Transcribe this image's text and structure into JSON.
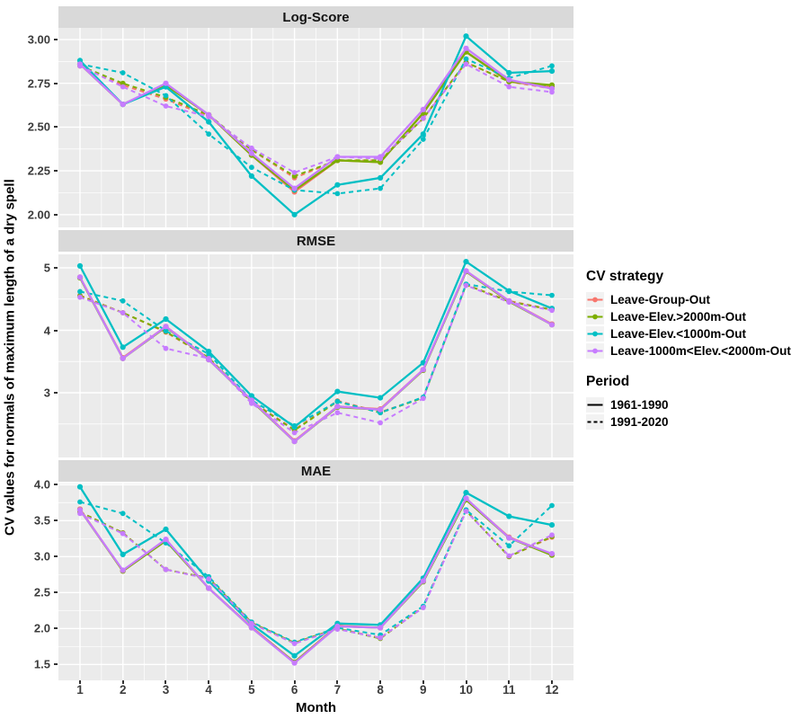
{
  "axes": {
    "ylabel": "CV values for normals of maximum length of a dry spell",
    "xlabel": "Month",
    "x_tick_labels": [
      "1",
      "2",
      "3",
      "4",
      "5",
      "6",
      "7",
      "8",
      "9",
      "10",
      "11",
      "12"
    ]
  },
  "legend": {
    "cv_title": "CV strategy",
    "cv_items": [
      {
        "label": "Leave-Group-Out",
        "color": "#F8766D"
      },
      {
        "label": "Leave-Elev.>2000m-Out",
        "color": "#7CAE00"
      },
      {
        "label": "Leave-Elev.<1000m-Out",
        "color": "#00BFC4"
      },
      {
        "label": "Leave-1000m<Elev.<2000m-Out",
        "color": "#C77CFF"
      }
    ],
    "period_title": "Period",
    "period_items": [
      {
        "label": "1961-1990",
        "dash": ""
      },
      {
        "label": "1991-2020",
        "dash": "4,3"
      }
    ],
    "key_background": "#F2F2F2"
  },
  "style": {
    "panel_background": "#EBEBEB",
    "strip_background": "#D9D9D9",
    "grid_color": "#FFFFFF"
  },
  "chart_data": [
    {
      "type": "line",
      "title": "Log-Score",
      "x": [
        1,
        2,
        3,
        4,
        5,
        6,
        7,
        8,
        9,
        10,
        11,
        12
      ],
      "ylim": [
        1.927,
        3.067
      ],
      "yticks": [
        2.0,
        2.25,
        2.5,
        2.75,
        3.0
      ],
      "ytick_labels": [
        "2.00",
        "2.25",
        "2.50",
        "2.75",
        "3.00"
      ],
      "series": [
        {
          "name": "Leave-Group-Out",
          "period": "1961-1990",
          "color": "#F8766D",
          "dashed": false,
          "values": [
            2.86,
            2.63,
            2.74,
            2.57,
            2.34,
            2.13,
            2.31,
            2.3,
            2.58,
            2.93,
            2.76,
            2.73
          ]
        },
        {
          "name": "Leave-Group-Out",
          "period": "1991-2020",
          "color": "#F8766D",
          "dashed": true,
          "values": [
            2.85,
            2.74,
            2.66,
            2.56,
            2.37,
            2.21,
            2.31,
            2.31,
            2.55,
            2.87,
            2.76,
            2.72
          ]
        },
        {
          "name": "Leave-Elev.>2000m-Out",
          "period": "1961-1990",
          "color": "#7CAE00",
          "dashed": false,
          "values": [
            2.86,
            2.63,
            2.74,
            2.57,
            2.34,
            2.14,
            2.31,
            2.3,
            2.58,
            2.93,
            2.76,
            2.74
          ]
        },
        {
          "name": "Leave-Elev.>2000m-Out",
          "period": "1991-2020",
          "color": "#7CAE00",
          "dashed": true,
          "values": [
            2.85,
            2.75,
            2.67,
            2.57,
            2.37,
            2.22,
            2.31,
            2.31,
            2.55,
            2.87,
            2.76,
            2.73
          ]
        },
        {
          "name": "Leave-Elev.<1000m-Out",
          "period": "1961-1990",
          "color": "#00BFC4",
          "dashed": false,
          "values": [
            2.88,
            2.63,
            2.73,
            2.53,
            2.22,
            2.0,
            2.17,
            2.21,
            2.46,
            3.02,
            2.81,
            2.82
          ]
        },
        {
          "name": "Leave-Elev.<1000m-Out",
          "period": "1991-2020",
          "color": "#00BFC4",
          "dashed": true,
          "values": [
            2.86,
            2.81,
            2.68,
            2.46,
            2.27,
            2.14,
            2.12,
            2.15,
            2.43,
            2.89,
            2.78,
            2.85
          ]
        },
        {
          "name": "Leave-1000m<Elev.<2000m-Out",
          "period": "1961-1990",
          "color": "#C77CFF",
          "dashed": false,
          "values": [
            2.86,
            2.63,
            2.75,
            2.57,
            2.35,
            2.15,
            2.33,
            2.33,
            2.6,
            2.95,
            2.77,
            2.72
          ]
        },
        {
          "name": "Leave-1000m<Elev.<2000m-Out",
          "period": "1991-2020",
          "color": "#C77CFF",
          "dashed": true,
          "values": [
            2.85,
            2.73,
            2.62,
            2.56,
            2.38,
            2.24,
            2.33,
            2.32,
            2.55,
            2.86,
            2.73,
            2.7
          ]
        }
      ]
    },
    {
      "type": "line",
      "title": "RMSE",
      "x": [
        1,
        2,
        3,
        4,
        5,
        6,
        7,
        8,
        9,
        10,
        11,
        12
      ],
      "ylim": [
        1.964,
        5.216
      ],
      "yticks": [
        3,
        4,
        5
      ],
      "ytick_labels": [
        "3",
        "4",
        "5"
      ],
      "series": [
        {
          "name": "Leave-Group-Out",
          "period": "1961-1990",
          "color": "#F8766D",
          "dashed": false,
          "values": [
            4.85,
            3.56,
            4.06,
            3.54,
            2.88,
            2.23,
            2.78,
            2.74,
            3.37,
            4.95,
            4.47,
            4.1
          ]
        },
        {
          "name": "Leave-Group-Out",
          "period": "1991-2020",
          "color": "#F8766D",
          "dashed": true,
          "values": [
            4.56,
            4.28,
            3.97,
            3.56,
            2.86,
            2.41,
            2.87,
            2.69,
            2.92,
            4.73,
            4.47,
            4.33
          ]
        },
        {
          "name": "Leave-Elev.>2000m-Out",
          "period": "1961-1990",
          "color": "#7CAE00",
          "dashed": false,
          "values": [
            4.84,
            3.55,
            4.05,
            3.53,
            2.87,
            2.22,
            2.77,
            2.73,
            3.36,
            4.94,
            4.46,
            4.09
          ]
        },
        {
          "name": "Leave-Elev.>2000m-Out",
          "period": "1991-2020",
          "color": "#7CAE00",
          "dashed": true,
          "values": [
            4.55,
            4.28,
            3.98,
            3.56,
            2.85,
            2.4,
            2.86,
            2.68,
            2.92,
            4.73,
            4.46,
            4.33
          ]
        },
        {
          "name": "Leave-Elev.<1000m-Out",
          "period": "1961-1990",
          "color": "#00BFC4",
          "dashed": false,
          "values": [
            5.03,
            3.73,
            4.18,
            3.66,
            2.95,
            2.45,
            3.02,
            2.92,
            3.48,
            5.1,
            4.63,
            4.35
          ]
        },
        {
          "name": "Leave-Elev.<1000m-Out",
          "period": "1991-2020",
          "color": "#00BFC4",
          "dashed": true,
          "values": [
            4.62,
            4.47,
            3.99,
            3.62,
            2.88,
            2.47,
            2.86,
            2.68,
            2.93,
            4.74,
            4.62,
            4.56
          ]
        },
        {
          "name": "Leave-1000m<Elev.<2000m-Out",
          "period": "1961-1990",
          "color": "#C77CFF",
          "dashed": false,
          "values": [
            4.85,
            3.55,
            4.06,
            3.53,
            2.88,
            2.22,
            2.78,
            2.73,
            3.37,
            4.95,
            4.47,
            4.09
          ]
        },
        {
          "name": "Leave-1000m<Elev.<2000m-Out",
          "period": "1991-2020",
          "color": "#C77CFF",
          "dashed": true,
          "values": [
            4.53,
            4.28,
            3.71,
            3.55,
            2.83,
            2.36,
            2.68,
            2.52,
            2.91,
            4.72,
            4.45,
            4.32
          ]
        }
      ]
    },
    {
      "type": "line",
      "title": "MAE",
      "x": [
        1,
        2,
        3,
        4,
        5,
        6,
        7,
        8,
        9,
        10,
        11,
        12
      ],
      "ylim": [
        1.279,
        4.016
      ],
      "yticks": [
        1.5,
        2.0,
        2.5,
        3.0,
        3.5,
        4.0
      ],
      "ytick_labels": [
        "1.5",
        "2.0",
        "2.5",
        "3.0",
        "3.5",
        "4.0"
      ],
      "series": [
        {
          "name": "Leave-Group-Out",
          "period": "1961-1990",
          "color": "#F8766D",
          "dashed": false,
          "values": [
            3.66,
            2.8,
            3.23,
            2.56,
            2.02,
            1.53,
            2.04,
            2.01,
            2.66,
            3.8,
            3.27,
            3.03
          ]
        },
        {
          "name": "Leave-Group-Out",
          "period": "1991-2020",
          "color": "#F8766D",
          "dashed": true,
          "values": [
            3.62,
            3.33,
            2.82,
            2.7,
            2.08,
            1.8,
            2.0,
            1.87,
            2.3,
            3.64,
            3.0,
            3.27
          ]
        },
        {
          "name": "Leave-Elev.>2000m-Out",
          "period": "1961-1990",
          "color": "#7CAE00",
          "dashed": false,
          "values": [
            3.65,
            2.8,
            3.22,
            2.56,
            2.01,
            1.53,
            2.03,
            2.01,
            2.65,
            3.79,
            3.26,
            3.02
          ]
        },
        {
          "name": "Leave-Elev.>2000m-Out",
          "period": "1991-2020",
          "color": "#7CAE00",
          "dashed": true,
          "values": [
            3.62,
            3.33,
            2.82,
            2.7,
            2.08,
            1.8,
            2.0,
            1.86,
            2.3,
            3.64,
            3.0,
            3.28
          ]
        },
        {
          "name": "Leave-Elev.<1000m-Out",
          "period": "1961-1990",
          "color": "#00BFC4",
          "dashed": false,
          "values": [
            3.97,
            3.03,
            3.38,
            2.66,
            2.06,
            1.62,
            2.07,
            2.05,
            2.7,
            3.89,
            3.56,
            3.44
          ]
        },
        {
          "name": "Leave-Elev.<1000m-Out",
          "period": "1991-2020",
          "color": "#00BFC4",
          "dashed": true,
          "values": [
            3.76,
            3.6,
            3.19,
            2.72,
            2.09,
            1.81,
            2.01,
            1.91,
            2.31,
            3.65,
            3.15,
            3.71
          ]
        },
        {
          "name": "Leave-1000m<Elev.<2000m-Out",
          "period": "1961-1990",
          "color": "#C77CFF",
          "dashed": false,
          "values": [
            3.65,
            2.81,
            3.24,
            2.56,
            2.01,
            1.52,
            2.03,
            2.01,
            2.66,
            3.81,
            3.26,
            3.04
          ]
        },
        {
          "name": "Leave-1000m<Elev.<2000m-Out",
          "period": "1991-2020",
          "color": "#C77CFF",
          "dashed": true,
          "values": [
            3.6,
            3.32,
            2.82,
            2.69,
            2.07,
            1.79,
            1.99,
            1.87,
            2.29,
            3.63,
            3.01,
            3.3
          ]
        }
      ]
    }
  ]
}
